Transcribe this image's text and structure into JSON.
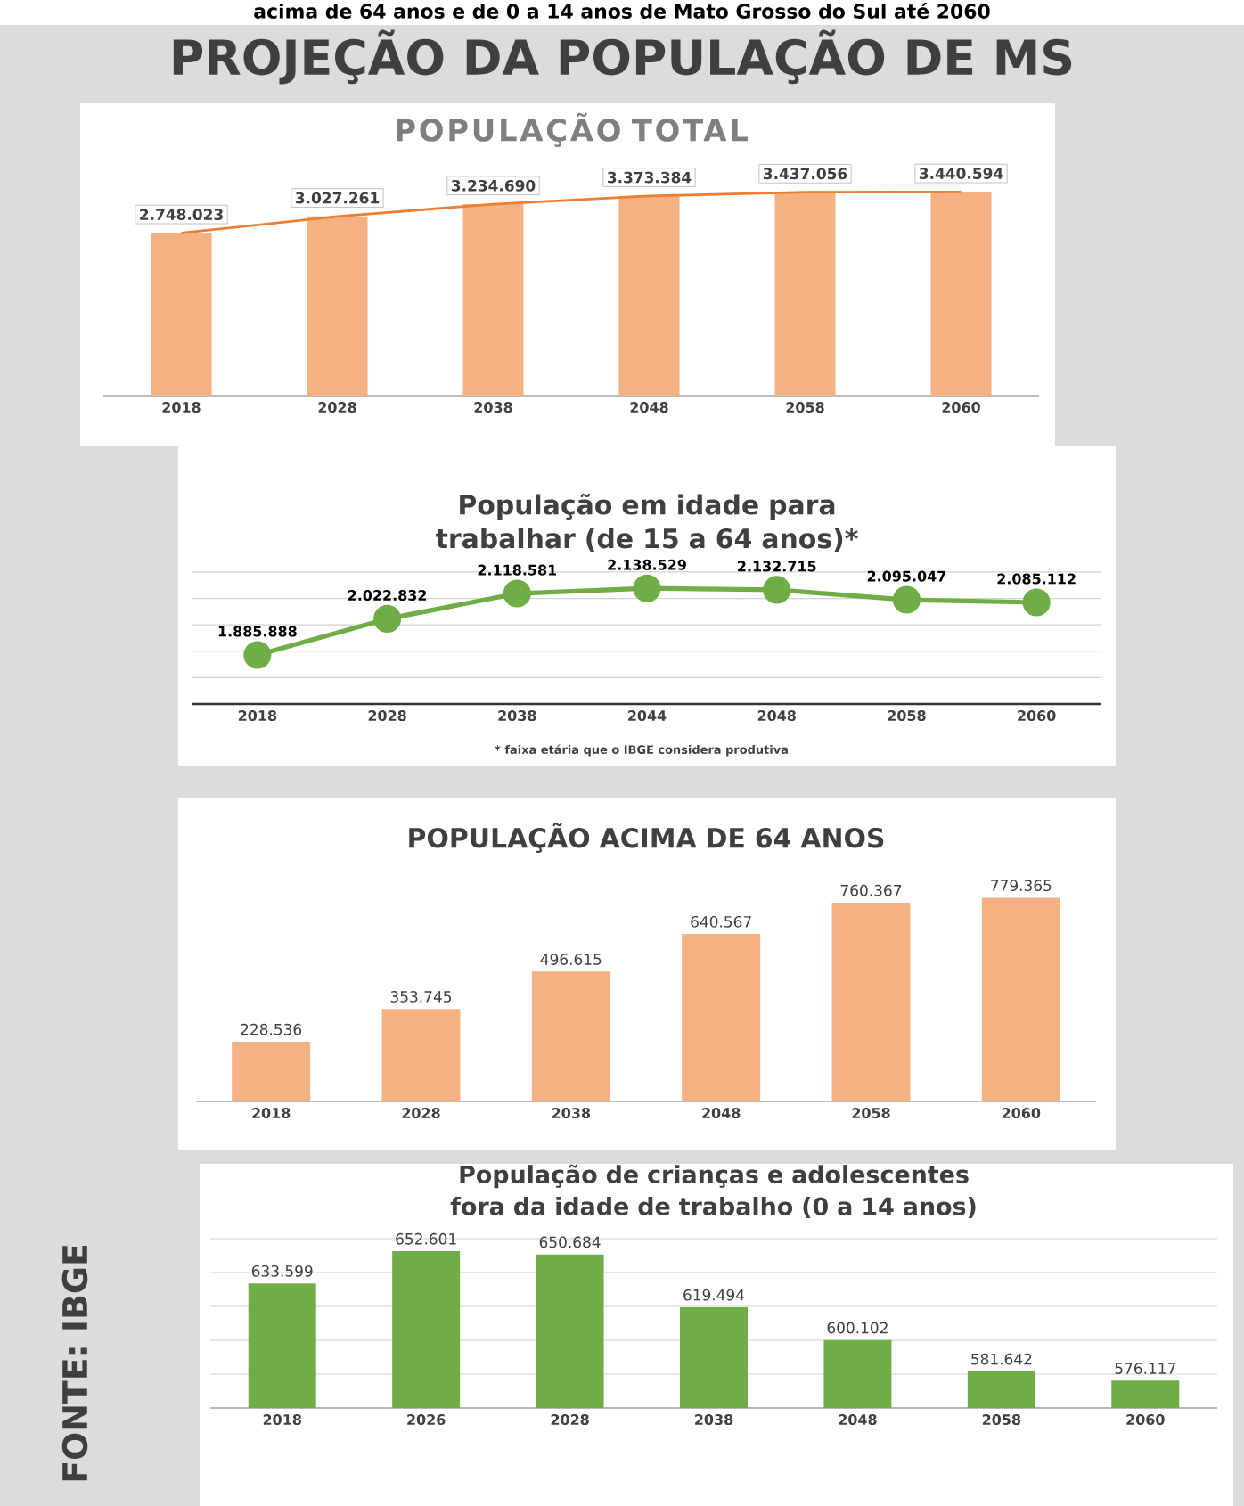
{
  "chart_data": [
    {
      "type": "bar",
      "title": "POPULAÇÃO TOTAL",
      "categories": [
        "2018",
        "2028",
        "2038",
        "2048",
        "2058",
        "2060"
      ],
      "series": [
        {
          "type": "bar",
          "color": "#f4b183",
          "values": [
            2748023,
            3027261,
            3234690,
            3373384,
            3437056,
            3440594
          ],
          "value_labels": [
            "2.748.023",
            "3.027.261",
            "3.234.690",
            "3.373.384",
            "3.437.056",
            "3.440.594"
          ]
        },
        {
          "type": "line",
          "color": "#ed7d31",
          "values": [
            2748023,
            3027261,
            3234690,
            3373384,
            3437056,
            3440594
          ]
        }
      ],
      "tick_labels": "x",
      "annotations": [
        "acima de 64 anos e de 0 a 14 anos de Mato Grosso do Sul até 2060",
        "PROJEÇÃO DA POPULAÇÃO DE MS"
      ]
    },
    {
      "type": "line",
      "title": "População em idade para trabalhar (de 15 a 64 anos)*",
      "categories": [
        "2018",
        "2028",
        "2038",
        "2044",
        "2048",
        "2058",
        "2060"
      ],
      "series": [
        {
          "color": "#70ad47",
          "values": [
            1885888,
            2022832,
            2118581,
            2138529,
            2132715,
            2095047,
            2085112
          ],
          "value_labels": [
            "1.885.888",
            "2.022.832",
            "2.118.581",
            "2.138.529",
            "2.132.715",
            "2.095.047",
            "2.085.112"
          ]
        }
      ],
      "ylim": [
        1700000,
        2200000
      ],
      "yticks": [
        {
          "value": 1700000,
          "label": null
        },
        {
          "value": 1800000,
          "label": null
        },
        {
          "value": 1900000,
          "label": null
        },
        {
          "value": 2000000,
          "label": null
        },
        {
          "value": 2100000,
          "label": null
        },
        {
          "value": 2200000,
          "label": null
        }
      ],
      "grid": "y",
      "marker": "circle",
      "tick_labels": "x",
      "annotations": [
        "* faixa etária que o IBGE considera produtiva"
      ]
    },
    {
      "type": "bar",
      "title": "POPULAÇÃO ACIMA DE 64 ANOS",
      "categories": [
        "2018",
        "2028",
        "2038",
        "2048",
        "2058",
        "2060"
      ],
      "series": [
        {
          "color": "#f4b183",
          "values": [
            228536,
            353745,
            496615,
            640567,
            760367,
            779365
          ],
          "value_labels": [
            "228.536",
            "353.745",
            "496.615",
            "640.567",
            "760.367",
            "779.365"
          ]
        }
      ],
      "tick_labels": "x"
    },
    {
      "type": "bar",
      "title": "População de crianças e adolescentes fora da idade de trabalho (0 a 14 anos)",
      "categories": [
        "2018",
        "2026",
        "2028",
        "2038",
        "2048",
        "2058",
        "2060"
      ],
      "series": [
        {
          "color": "#70ad47",
          "values": [
            633599,
            652601,
            650684,
            619494,
            600102,
            581642,
            576117
          ],
          "value_labels": [
            "633.599",
            "652.601",
            "650.684",
            "619.494",
            "600.102",
            "581.642",
            "576.117"
          ]
        }
      ],
      "ylim": [
        560000,
        660000
      ],
      "yticks": [
        {
          "value": 560000,
          "label": null
        },
        {
          "value": 580000,
          "label": null
        },
        {
          "value": 600000,
          "label": null
        },
        {
          "value": 620000,
          "label": null
        },
        {
          "value": 640000,
          "label": null
        },
        {
          "value": 660000,
          "label": null
        }
      ],
      "grid": "y",
      "tick_labels": "x",
      "annotations": [
        "FONTE: IBGE"
      ]
    }
  ]
}
